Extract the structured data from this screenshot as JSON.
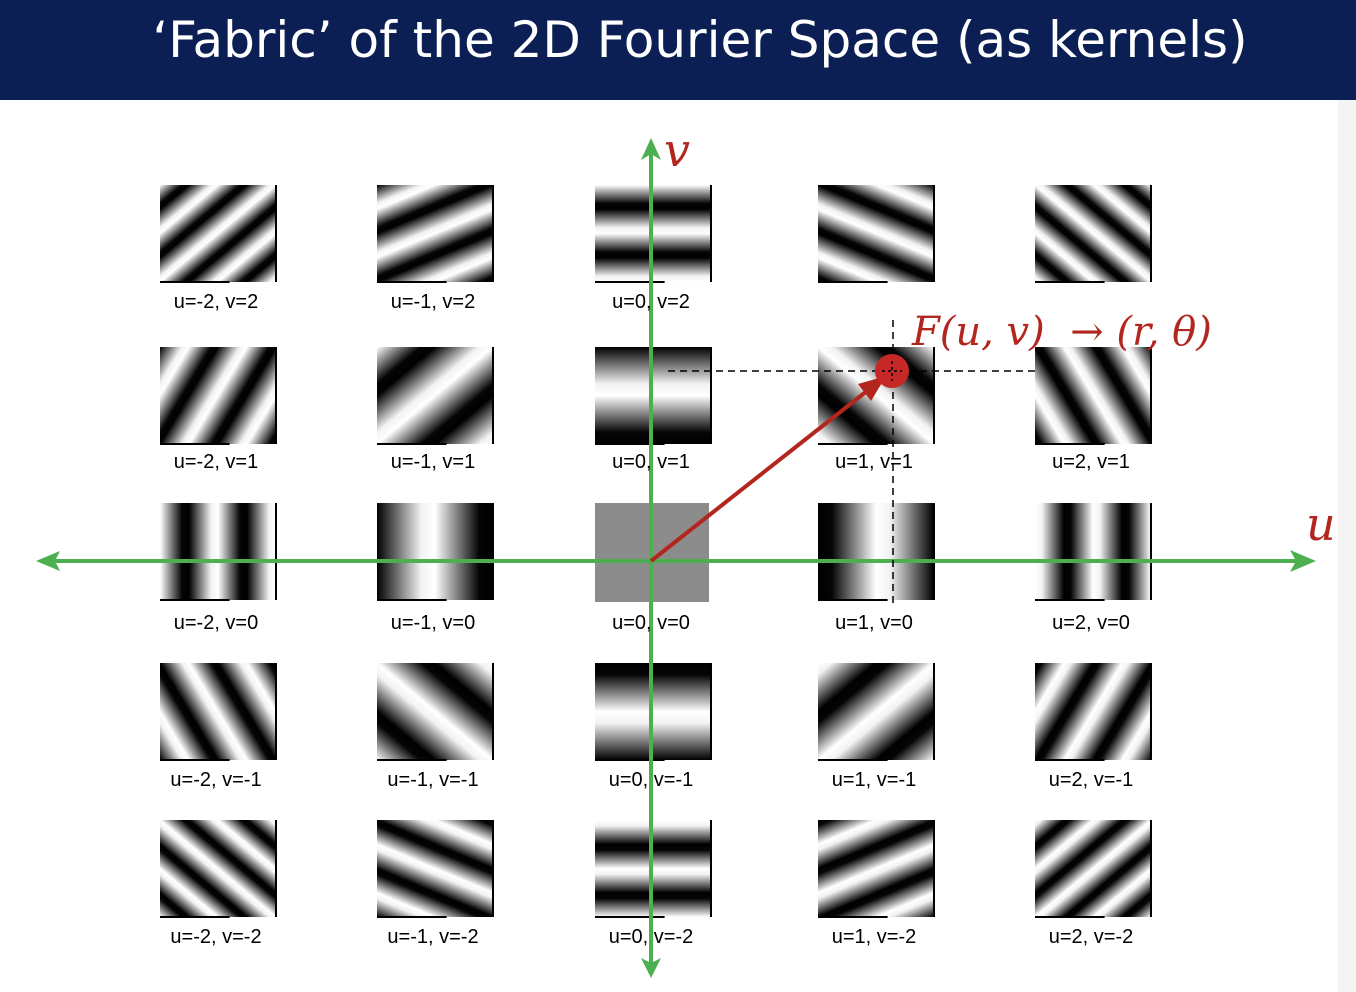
{
  "title": "‘Fabric’ of the 2D Fourier Space (as kernels)",
  "axes": {
    "u_label": "u",
    "v_label": "v"
  },
  "annotation": {
    "formula": "F(u, v)  → (r, θ)"
  },
  "kernels": [
    {
      "u": -2,
      "v": 2,
      "label": "u=-2, v=2"
    },
    {
      "u": -1,
      "v": 2,
      "label": "u=-1, v=2"
    },
    {
      "u": 0,
      "v": 2,
      "label": "u=0, v=2"
    },
    {
      "u": 1,
      "v": 2,
      "label": ""
    },
    {
      "u": 2,
      "v": 2,
      "label": ""
    },
    {
      "u": -2,
      "v": 1,
      "label": "u=-2, v=1"
    },
    {
      "u": -1,
      "v": 1,
      "label": "u=-1, v=1"
    },
    {
      "u": 0,
      "v": 1,
      "label": "u=0, v=1"
    },
    {
      "u": 1,
      "v": 1,
      "label": "u=1, v=1"
    },
    {
      "u": 2,
      "v": 1,
      "label": "u=2, v=1"
    },
    {
      "u": -2,
      "v": 0,
      "label": "u=-2, v=0"
    },
    {
      "u": -1,
      "v": 0,
      "label": "u=-1, v=0"
    },
    {
      "u": 0,
      "v": 0,
      "label": "u=0, v=0"
    },
    {
      "u": 1,
      "v": 0,
      "label": "u=1, v=0"
    },
    {
      "u": 2,
      "v": 0,
      "label": "u=2, v=0"
    },
    {
      "u": -2,
      "v": -1,
      "label": "u=-2, v=-1"
    },
    {
      "u": -1,
      "v": -1,
      "label": "u=-1, v=-1"
    },
    {
      "u": 0,
      "v": -1,
      "label": "u=0, v=-1"
    },
    {
      "u": 1,
      "v": -1,
      "label": "u=1, v=-1"
    },
    {
      "u": 2,
      "v": -1,
      "label": "u=2, v=-1"
    },
    {
      "u": -2,
      "v": -2,
      "label": "u=-2, v=-2"
    },
    {
      "u": -1,
      "v": -2,
      "label": "u=-1, v=-2"
    },
    {
      "u": 0,
      "v": -2,
      "label": "u=0, v=-2"
    },
    {
      "u": 1,
      "v": -2,
      "label": "u=1, v=-2"
    },
    {
      "u": 2,
      "v": -2,
      "label": "u=2, v=-2"
    }
  ],
  "colors": {
    "title_background": "#0c1f55",
    "title_text": "#ffffff",
    "axis": "#4caf50",
    "vector": "#b3261e",
    "dc_fill": "#8c8c8c"
  }
}
